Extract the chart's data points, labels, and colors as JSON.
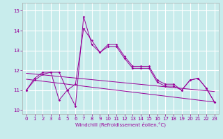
{
  "title": "",
  "xlabel": "Windchill (Refroidissement éolien,°C)",
  "background_color": "#c8ecec",
  "grid_color": "#ffffff",
  "line_color": "#990099",
  "x": [
    0,
    1,
    2,
    3,
    4,
    5,
    6,
    7,
    8,
    9,
    10,
    11,
    12,
    13,
    14,
    15,
    16,
    17,
    18,
    19,
    20,
    21,
    22,
    23
  ],
  "series1": [
    11.0,
    11.6,
    11.9,
    11.9,
    11.9,
    11.0,
    11.3,
    14.1,
    13.5,
    12.9,
    13.2,
    13.2,
    12.6,
    12.1,
    12.1,
    12.1,
    11.4,
    11.2,
    11.2,
    11.0,
    11.5,
    11.6,
    11.1,
    10.4
  ],
  "series2": [
    11.0,
    11.5,
    11.8,
    11.9,
    10.5,
    11.0,
    10.2,
    14.7,
    13.3,
    12.9,
    13.3,
    13.3,
    12.7,
    12.2,
    12.2,
    12.2,
    11.5,
    11.3,
    11.3,
    11.0,
    11.5,
    11.6,
    11.1,
    10.4
  ],
  "series_linear1": [
    11.85,
    11.81,
    11.77,
    11.73,
    11.69,
    11.65,
    11.61,
    11.57,
    11.53,
    11.49,
    11.45,
    11.41,
    11.37,
    11.33,
    11.29,
    11.25,
    11.21,
    11.17,
    11.13,
    11.09,
    11.05,
    11.01,
    10.97,
    10.93
  ],
  "series_linear2": [
    11.55,
    11.5,
    11.45,
    11.4,
    11.35,
    11.3,
    11.25,
    11.2,
    11.15,
    11.1,
    11.05,
    11.0,
    10.95,
    10.9,
    10.85,
    10.8,
    10.75,
    10.7,
    10.65,
    10.6,
    10.55,
    10.5,
    10.45,
    10.4
  ],
  "ylim": [
    9.8,
    15.4
  ],
  "yticks": [
    10,
    11,
    12,
    13,
    14,
    15
  ],
  "xlim": [
    -0.5,
    23.5
  ]
}
